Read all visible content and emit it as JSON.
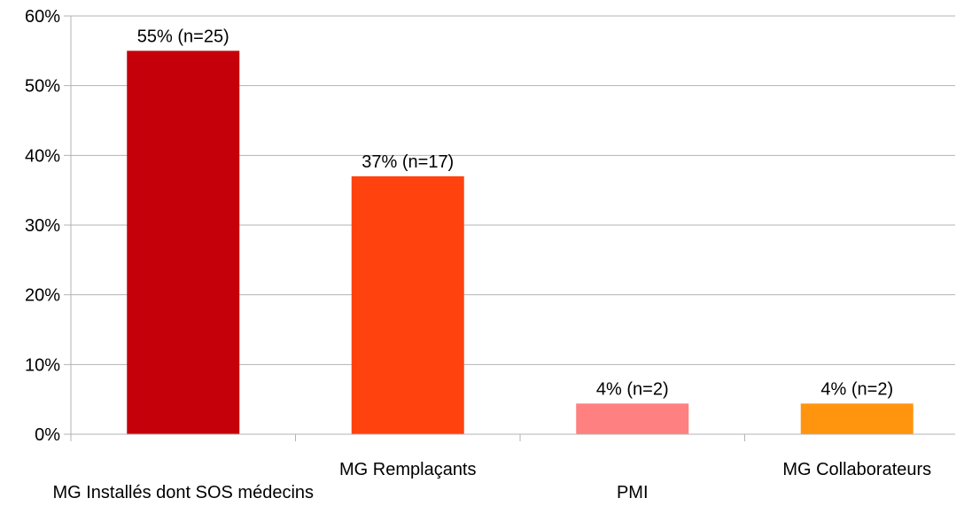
{
  "chart_data": {
    "type": "bar",
    "categories": [
      "MG Installés dont SOS médecins",
      "MG Remplaçants",
      "PMI",
      "MG Collaborateurs"
    ],
    "values": [
      55,
      37,
      4.4,
      4.4
    ],
    "data_labels": [
      "55% (n=25)",
      "37% (n=17)",
      "4% (n=2)",
      "4% (n=2)"
    ],
    "colors": [
      "#c5000b",
      "#ff420e",
      "#ff8080",
      "#ff950e"
    ],
    "yticks": [
      "0%",
      "10%",
      "20%",
      "30%",
      "40%",
      "50%",
      "60%"
    ],
    "ylim": [
      0,
      60
    ],
    "grid": true,
    "legend": "none",
    "title": "",
    "xlabel": "",
    "ylabel": ""
  }
}
